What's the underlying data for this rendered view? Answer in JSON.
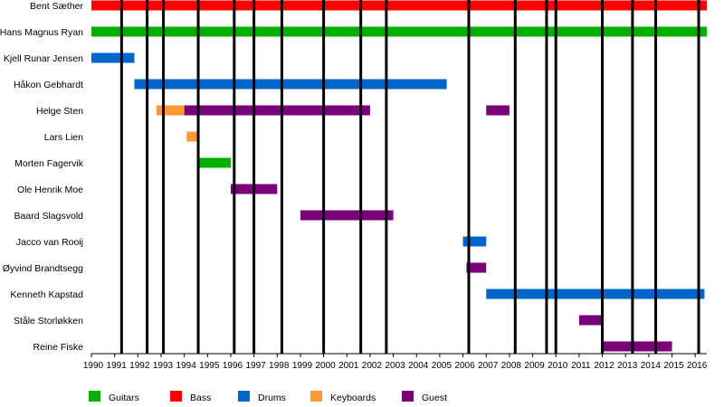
{
  "chart_data": {
    "type": "bar",
    "subtype": "timeline",
    "title": "",
    "xlabel": "",
    "ylabel": "",
    "xlim": [
      1990,
      2016.5
    ],
    "years": [
      "1990",
      "1991",
      "1992",
      "1993",
      "1994",
      "1995",
      "1996",
      "1997",
      "1998",
      "1999",
      "2000",
      "2001",
      "2002",
      "2003",
      "2004",
      "2005",
      "2006",
      "2007",
      "2008",
      "2009",
      "2010",
      "2011",
      "2012",
      "2013",
      "2014",
      "2015",
      "2016"
    ],
    "colors": {
      "Guitars": "#00b000",
      "Bass": "#ff0000",
      "Drums": "#0066cc",
      "Keyboards": "#ff9933",
      "Guest": "#7a007a"
    },
    "legend": [
      "Guitars",
      "Bass",
      "Drums",
      "Keyboards",
      "Guest"
    ],
    "legend_position": "bottom",
    "events": [
      1991.3,
      1992.4,
      1993.1,
      1994.6,
      1996.15,
      1997.0,
      1998.2,
      2000.0,
      2001.6,
      2002.7,
      2006.25,
      2008.25,
      2009.6,
      2010.0,
      2012.0,
      2013.3,
      2014.3,
      2016.15
    ],
    "members": [
      {
        "name": "Bent Sæther",
        "bars": [
          {
            "start": 1990.0,
            "end": 2016.5,
            "role": "Bass"
          }
        ]
      },
      {
        "name": "Hans Magnus Ryan",
        "bars": [
          {
            "start": 1990.0,
            "end": 2016.5,
            "role": "Guitars"
          }
        ]
      },
      {
        "name": "Kjell Runar Jensen",
        "bars": [
          {
            "start": 1990.0,
            "end": 1991.85,
            "role": "Drums"
          }
        ]
      },
      {
        "name": "Håkon Gebhardt",
        "bars": [
          {
            "start": 1991.85,
            "end": 2005.3,
            "role": "Drums"
          }
        ]
      },
      {
        "name": "Helge Sten",
        "bars": [
          {
            "start": 1992.8,
            "end": 1994.0,
            "role": "Keyboards"
          },
          {
            "start": 1994.0,
            "end": 2002.0,
            "role": "Guest"
          },
          {
            "start": 2007.0,
            "end": 2008.0,
            "role": "Guest"
          }
        ]
      },
      {
        "name": "Lars Lien",
        "bars": [
          {
            "start": 1994.1,
            "end": 1994.55,
            "role": "Keyboards"
          }
        ]
      },
      {
        "name": "Morten Fagervik",
        "bars": [
          {
            "start": 1994.55,
            "end": 1996.0,
            "role": "Guitars"
          }
        ]
      },
      {
        "name": "Ole Henrik Moe",
        "bars": [
          {
            "start": 1996.0,
            "end": 1998.0,
            "role": "Guest"
          }
        ]
      },
      {
        "name": "Baard Slagsvold",
        "bars": [
          {
            "start": 1999.0,
            "end": 2003.0,
            "role": "Guest"
          }
        ]
      },
      {
        "name": "Jacco van Rooij",
        "bars": [
          {
            "start": 2006.0,
            "end": 2007.0,
            "role": "Drums"
          }
        ]
      },
      {
        "name": "Øyvind Brandtsegg",
        "bars": [
          {
            "start": 2006.15,
            "end": 2007.0,
            "role": "Guest"
          }
        ]
      },
      {
        "name": "Kenneth Kapstad",
        "bars": [
          {
            "start": 2007.0,
            "end": 2016.4,
            "role": "Drums"
          }
        ]
      },
      {
        "name": "Ståle Storløkken",
        "bars": [
          {
            "start": 2011.0,
            "end": 2012.0,
            "role": "Guest"
          }
        ]
      },
      {
        "name": "Reine Fiske",
        "bars": [
          {
            "start": 2012.0,
            "end": 2015.0,
            "role": "Guest"
          }
        ]
      }
    ]
  }
}
